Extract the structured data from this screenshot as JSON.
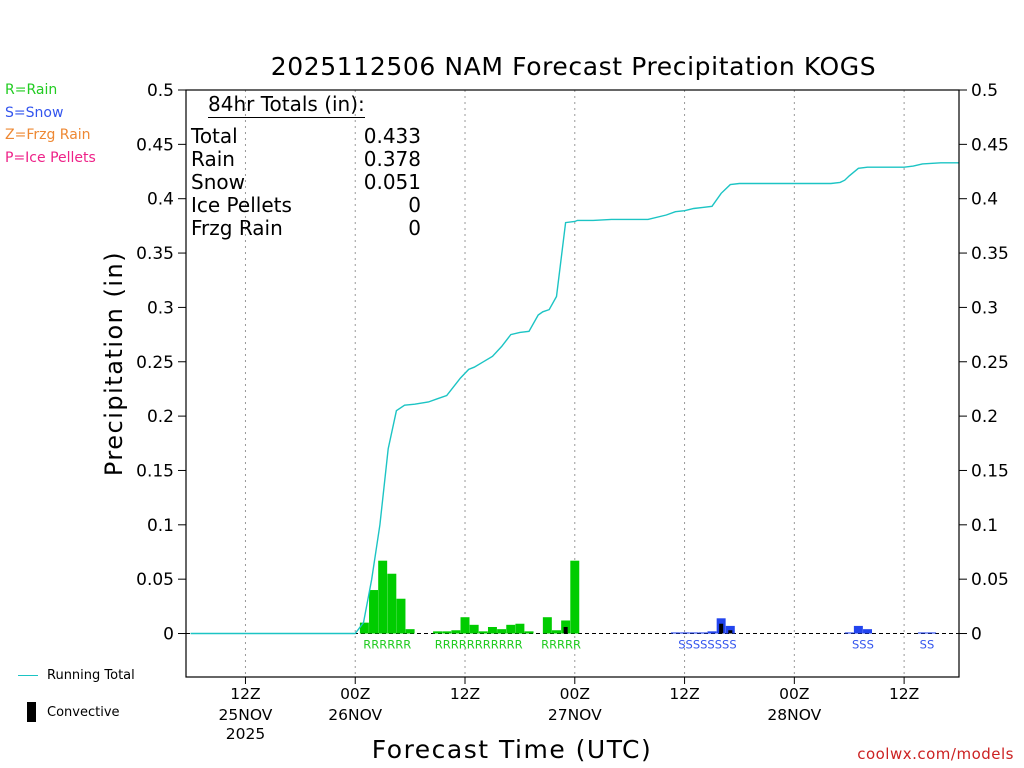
{
  "chart_data": {
    "type": "bar+line",
    "title": "2025112506 NAM Forecast Precipitation KOGS",
    "ylabel": "Precipitation (in)",
    "xlabel": "Forecast Time (UTC)",
    "watermark": "coolwx.com/models",
    "ylim": [
      -0.04,
      0.5
    ],
    "y_ticks": [
      0,
      0.05,
      0.1,
      0.15,
      0.2,
      0.25,
      0.3,
      0.35,
      0.4,
      0.45,
      0.5
    ],
    "y_tick_labels": [
      "0",
      "0.05",
      "0.1",
      "0.15",
      "0.2",
      "0.25",
      "0.3",
      "0.35",
      "0.4",
      "0.45",
      "0.5"
    ],
    "x_range_hours": [
      -0.5,
      84
    ],
    "x_ticks": [
      {
        "hour": 6,
        "line1": "12Z",
        "line2": "25NOV",
        "line3": "2025"
      },
      {
        "hour": 18,
        "line1": "00Z",
        "line2": "26NOV",
        "line3": ""
      },
      {
        "hour": 30,
        "line1": "12Z",
        "line2": "",
        "line3": ""
      },
      {
        "hour": 42,
        "line1": "00Z",
        "line2": "27NOV",
        "line3": ""
      },
      {
        "hour": 54,
        "line1": "12Z",
        "line2": "",
        "line3": ""
      },
      {
        "hour": 66,
        "line1": "00Z",
        "line2": "28NOV",
        "line3": ""
      },
      {
        "hour": 78,
        "line1": "12Z",
        "line2": "",
        "line3": ""
      }
    ],
    "type_legend": [
      {
        "label": "R=Rain",
        "color": "#22cc22"
      },
      {
        "label": "S=Snow",
        "color": "#3355ee"
      },
      {
        "label": "Z=Frzg Rain",
        "color": "#ee8833"
      },
      {
        "label": "P=Ice Pellets",
        "color": "#ee2288"
      }
    ],
    "totals": {
      "header": "84hr Totals (in):",
      "rows": [
        {
          "label": "Total",
          "value": "0.433"
        },
        {
          "label": "Rain",
          "value": "0.378"
        },
        {
          "label": "Snow",
          "value": "0.051"
        },
        {
          "label": "Ice Pellets",
          "value": "0"
        },
        {
          "label": "Frzg Rain",
          "value": "0"
        }
      ]
    },
    "series_legend": [
      {
        "label": "Running Total",
        "kind": "line",
        "color": "#1cc4c4"
      },
      {
        "label": "Convective",
        "kind": "bar",
        "color": "#000000"
      }
    ],
    "bars": {
      "rain_color": "#00cc00",
      "snow_color": "#2244ee",
      "convective_color": "#000000",
      "data": [
        {
          "hour": 19,
          "value": 0.01,
          "type": "rain"
        },
        {
          "hour": 20,
          "value": 0.04,
          "type": "rain"
        },
        {
          "hour": 21,
          "value": 0.067,
          "type": "rain"
        },
        {
          "hour": 22,
          "value": 0.055,
          "type": "rain"
        },
        {
          "hour": 23,
          "value": 0.032,
          "type": "rain"
        },
        {
          "hour": 24,
          "value": 0.004,
          "type": "rain"
        },
        {
          "hour": 27,
          "value": 0.002,
          "type": "rain"
        },
        {
          "hour": 28,
          "value": 0.002,
          "type": "rain"
        },
        {
          "hour": 29,
          "value": 0.003,
          "type": "rain"
        },
        {
          "hour": 30,
          "value": 0.015,
          "type": "rain"
        },
        {
          "hour": 31,
          "value": 0.008,
          "type": "rain"
        },
        {
          "hour": 32,
          "value": 0.002,
          "type": "rain"
        },
        {
          "hour": 33,
          "value": 0.006,
          "type": "rain"
        },
        {
          "hour": 34,
          "value": 0.004,
          "type": "rain"
        },
        {
          "hour": 35,
          "value": 0.008,
          "type": "rain"
        },
        {
          "hour": 36,
          "value": 0.009,
          "type": "rain"
        },
        {
          "hour": 37,
          "value": 0.002,
          "type": "rain"
        },
        {
          "hour": 39,
          "value": 0.015,
          "type": "rain"
        },
        {
          "hour": 40,
          "value": 0.003,
          "type": "rain"
        },
        {
          "hour": 41,
          "value": 0.012,
          "type": "rain"
        },
        {
          "hour": 42,
          "value": 0.067,
          "type": "rain"
        },
        {
          "hour": 53,
          "value": 0.001,
          "type": "snow"
        },
        {
          "hour": 54,
          "value": 0.001,
          "type": "snow"
        },
        {
          "hour": 55,
          "value": 0.001,
          "type": "snow"
        },
        {
          "hour": 56,
          "value": 0.001,
          "type": "snow"
        },
        {
          "hour": 57,
          "value": 0.002,
          "type": "snow"
        },
        {
          "hour": 58,
          "value": 0.014,
          "type": "snow"
        },
        {
          "hour": 59,
          "value": 0.007,
          "type": "snow"
        },
        {
          "hour": 72,
          "value": 0.001,
          "type": "snow"
        },
        {
          "hour": 73,
          "value": 0.007,
          "type": "snow"
        },
        {
          "hour": 74,
          "value": 0.004,
          "type": "snow"
        },
        {
          "hour": 80,
          "value": 0.001,
          "type": "snow"
        },
        {
          "hour": 81,
          "value": 0.001,
          "type": "snow"
        }
      ],
      "convective": [
        {
          "hour": 41,
          "value": 0.006
        },
        {
          "hour": 58,
          "value": 0.009
        },
        {
          "hour": 59,
          "value": 0.003
        }
      ]
    },
    "running_total": {
      "x": [
        0,
        18,
        18.9,
        19.8,
        20.7,
        21.6,
        22.5,
        23.4,
        24.5,
        26,
        27,
        28,
        29.5,
        30.4,
        31,
        32,
        33,
        34,
        35,
        36,
        37,
        38,
        38.5,
        39.2,
        40,
        41,
        42,
        42.3,
        44,
        46,
        48,
        50,
        52,
        53,
        54,
        55,
        56,
        57,
        58,
        59,
        60,
        62,
        64,
        66,
        68,
        70,
        71,
        71.5,
        72,
        73,
        74,
        76,
        78,
        79,
        80,
        82,
        84
      ],
      "y": [
        0,
        0,
        0.01,
        0.05,
        0.1,
        0.17,
        0.205,
        0.21,
        0.211,
        0.213,
        0.216,
        0.219,
        0.235,
        0.243,
        0.245,
        0.25,
        0.255,
        0.264,
        0.275,
        0.277,
        0.278,
        0.293,
        0.296,
        0.298,
        0.31,
        0.378,
        0.379,
        0.38,
        0.38,
        0.381,
        0.381,
        0.381,
        0.385,
        0.388,
        0.389,
        0.391,
        0.392,
        0.393,
        0.405,
        0.413,
        0.414,
        0.414,
        0.414,
        0.414,
        0.414,
        0.414,
        0.415,
        0.417,
        0.421,
        0.428,
        0.429,
        0.429,
        0.429,
        0.43,
        0.432,
        0.433,
        0.433
      ]
    },
    "type_codes": [
      {
        "text": "RRRRRR",
        "center_hour": 21.5,
        "color": "#22cc22"
      },
      {
        "text": "RRRRRRRRRRR",
        "center_hour": 31.5,
        "color": "#22cc22"
      },
      {
        "text": "RRRRR",
        "center_hour": 40.5,
        "color": "#22cc22"
      },
      {
        "text": "SSSSSSSS",
        "center_hour": 56.5,
        "color": "#3355ee"
      },
      {
        "text": "SSS",
        "center_hour": 73.5,
        "color": "#3355ee"
      },
      {
        "text": "SS",
        "center_hour": 80.5,
        "color": "#3355ee"
      }
    ]
  }
}
